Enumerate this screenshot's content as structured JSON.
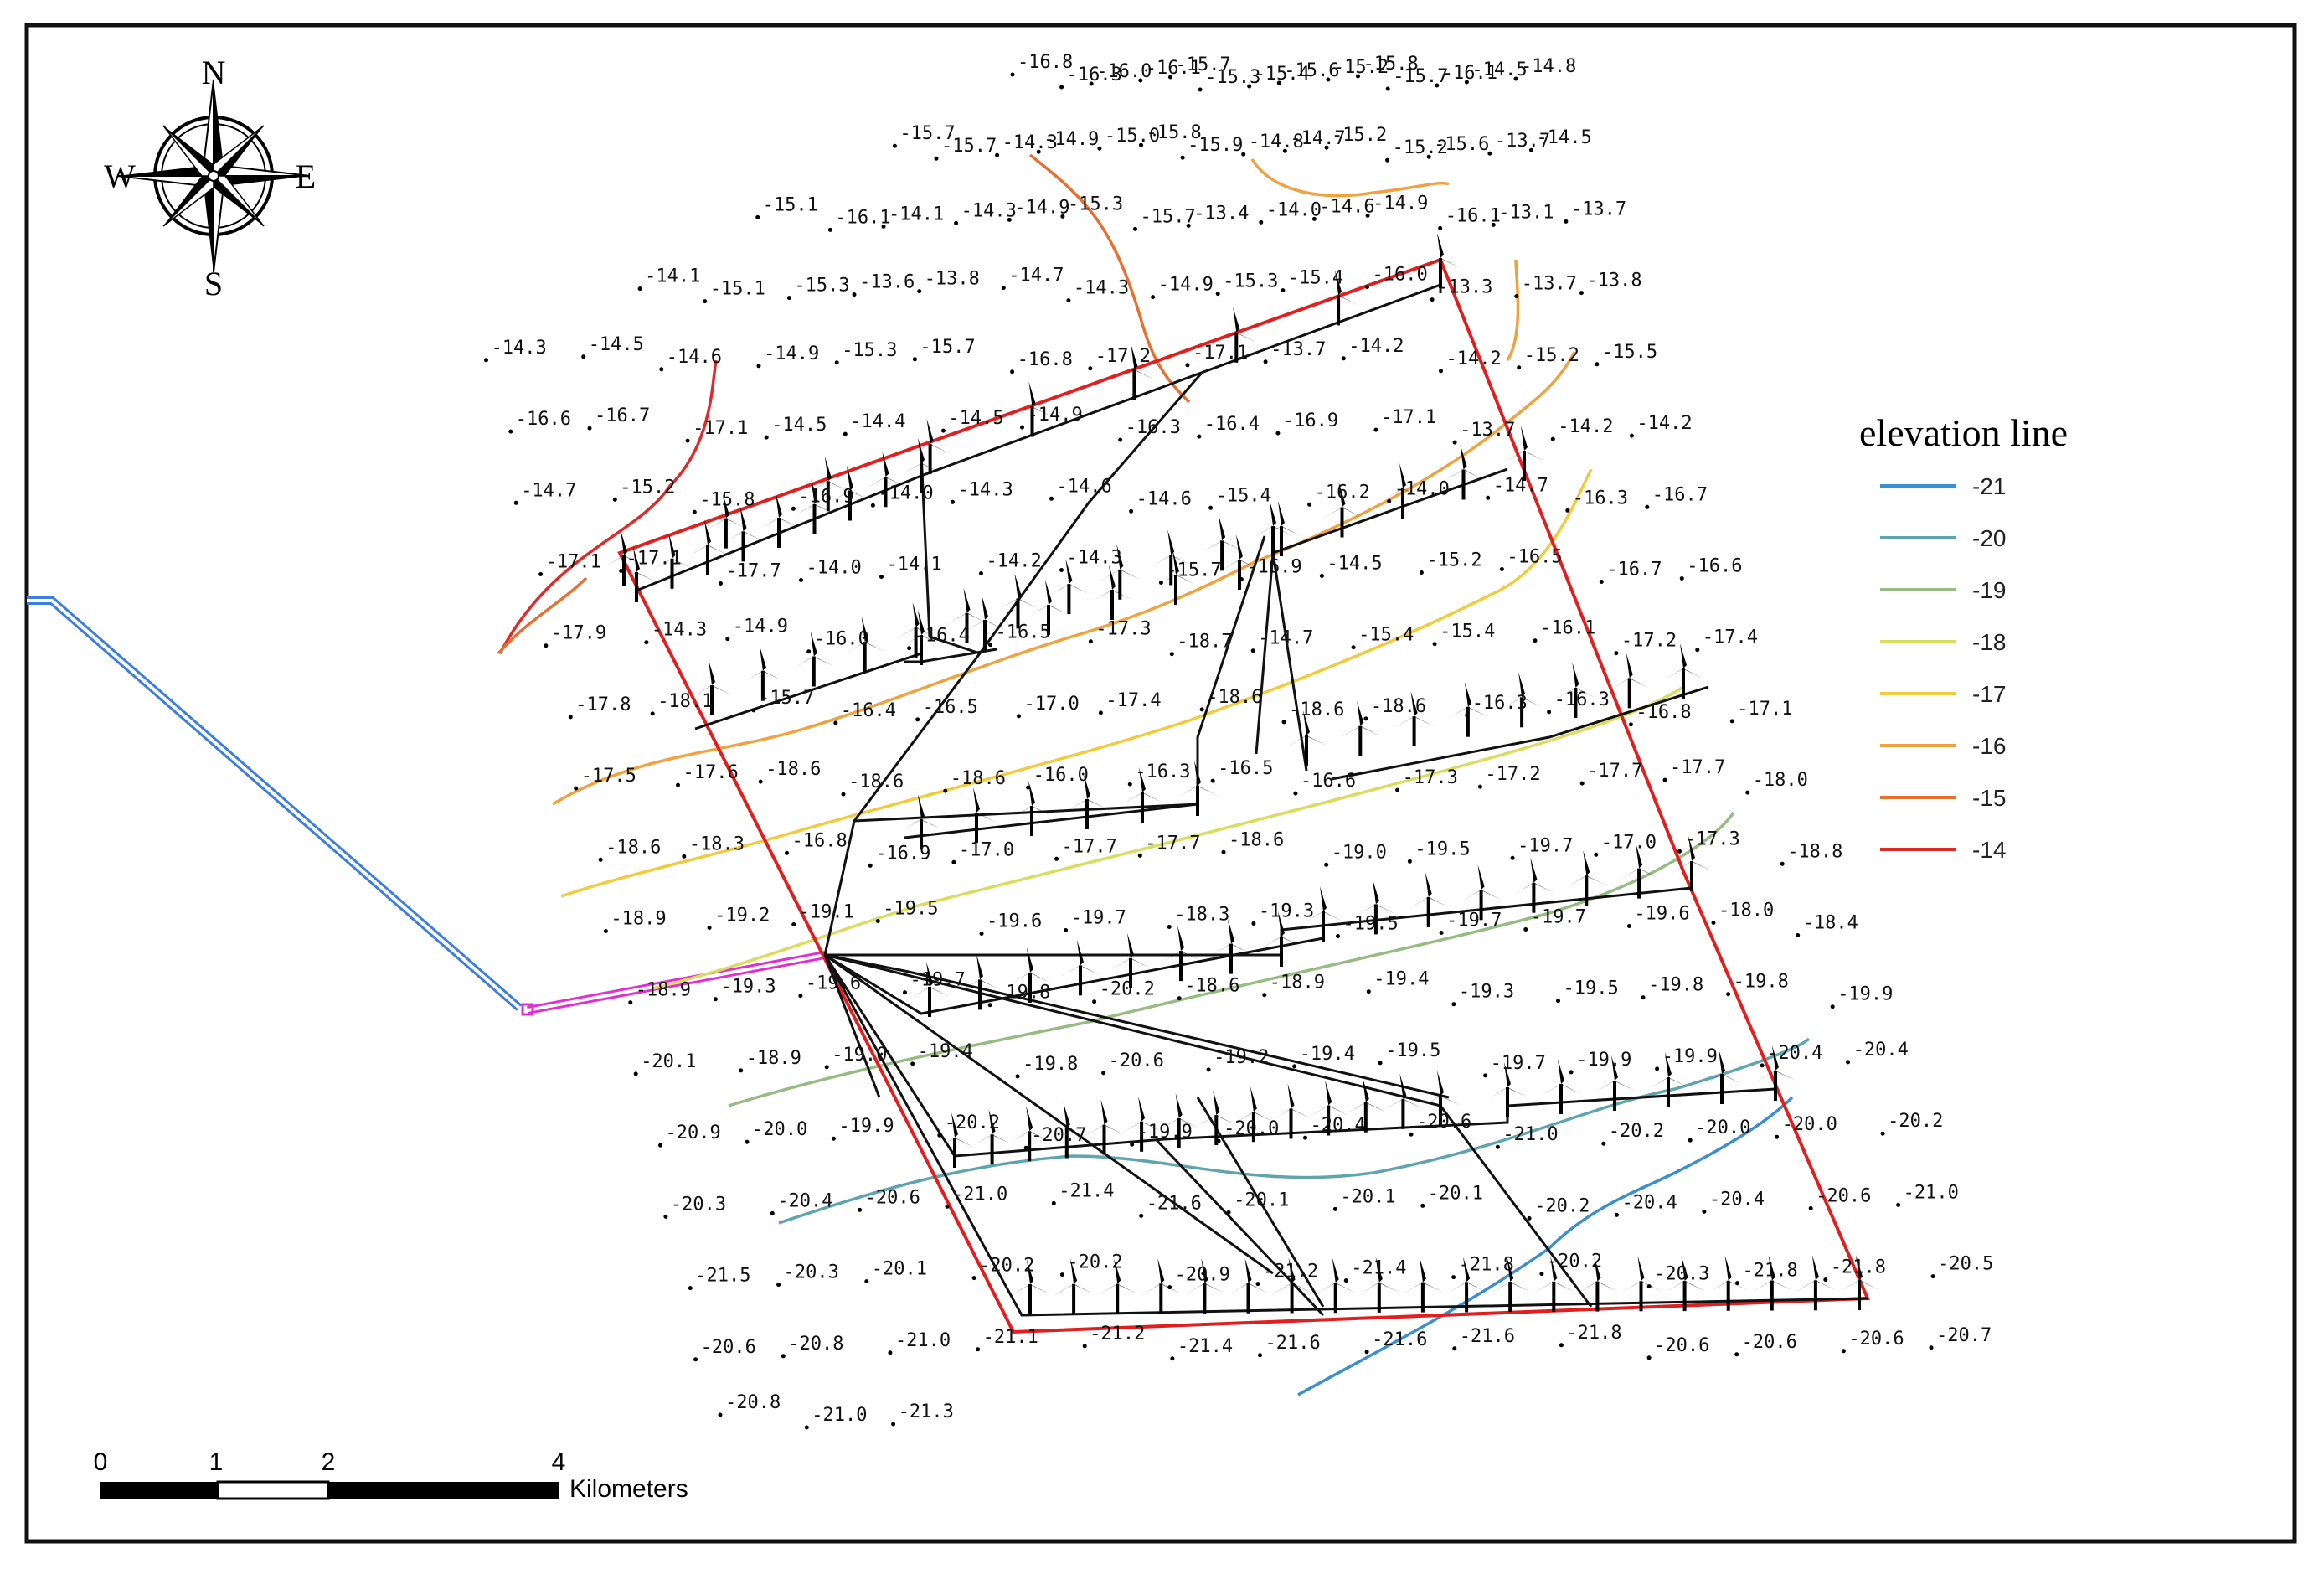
{
  "compass": {
    "north": "N",
    "south": "S",
    "east": "E",
    "west": "W"
  },
  "legend": {
    "title": "elevation line",
    "items": [
      {
        "label": "-21",
        "color": "#3a8fd0"
      },
      {
        "label": "-20",
        "color": "#5fa5ad"
      },
      {
        "label": "-19",
        "color": "#98bb84"
      },
      {
        "label": "-18",
        "color": "#d9dd5e"
      },
      {
        "label": "-17",
        "color": "#f2cb3c"
      },
      {
        "label": "-16",
        "color": "#f0a23e"
      },
      {
        "label": "-15",
        "color": "#e8702e"
      },
      {
        "label": "-14",
        "color": "#e02a2a"
      }
    ]
  },
  "scale_bar": {
    "labels": [
      "0",
      "1",
      "2",
      "4"
    ],
    "unit": "Kilometers"
  },
  "soundings": [
    "-16.8",
    "-16.3",
    "-16.0",
    "-16.1",
    "-15.7",
    "-15.3",
    "-15.4",
    "-15.6",
    "-15.2",
    "-15.8",
    "-15.7",
    "-16.1",
    "-14.5",
    "-14.8",
    "-15.7",
    "-15.7",
    "-14.3",
    "-14.9",
    "-15.0",
    "-15.8",
    "-15.9",
    "-14.8",
    "-14.7",
    "-15.2",
    "-15.2",
    "-15.6",
    "-13.7",
    "-14.5",
    "-15.1",
    "-16.1",
    "-14.1",
    "-14.3",
    "-14.9",
    "-15.3",
    "-15.7",
    "-13.4",
    "-14.0",
    "-14.6",
    "-14.9",
    "-16.1",
    "-13.1",
    "-13.7",
    "-14.1",
    "-15.1",
    "-15.3",
    "-13.6",
    "-13.8",
    "-14.7",
    "-14.3",
    "-14.9",
    "-15.3",
    "-15.4",
    "-16.0",
    "-13.3",
    "-13.7",
    "-13.8",
    "-14.3",
    "-14.5",
    "-14.6",
    "-14.9",
    "-15.3",
    "-15.7",
    "-16.8",
    "-17.2",
    "-17.1",
    "-13.7",
    "-14.2",
    "-14.2",
    "-15.2",
    "-15.5",
    "-16.6",
    "-16.7",
    "-17.1",
    "-14.5",
    "-14.4",
    "-14.5",
    "-14.9",
    "-16.3",
    "-16.4",
    "-16.9",
    "-17.1",
    "-13.7",
    "-14.2",
    "-14.2",
    "-14.7",
    "-15.2",
    "-15.8",
    "-16.9",
    "-14.0",
    "-14.3",
    "-14.6",
    "-14.6",
    "-15.4",
    "-16.2",
    "-14.0",
    "-14.7",
    "-16.3",
    "-16.7",
    "-17.1",
    "-17.1",
    "-17.7",
    "-14.0",
    "-14.1",
    "-14.2",
    "-14.3",
    "-15.7",
    "-16.9",
    "-14.5",
    "-15.2",
    "-16.5",
    "-16.7",
    "-16.6",
    "-17.9",
    "-14.3",
    "-14.9",
    "-16.0",
    "-16.4",
    "-16.5",
    "-17.3",
    "-18.7",
    "-14.7",
    "-15.4",
    "-15.4",
    "-16.1",
    "-17.2",
    "-17.4",
    "-17.8",
    "-18.1",
    "-15.7",
    "-16.4",
    "-16.5",
    "-17.0",
    "-17.4",
    "-18.6",
    "-18.6",
    "-18.6",
    "-16.3",
    "-16.3",
    "-16.8",
    "-17.1",
    "-17.5",
    "-17.6",
    "-18.6",
    "-18.6",
    "-18.6",
    "-16.0",
    "-16.3",
    "-16.5",
    "-16.6",
    "-17.3",
    "-17.2",
    "-17.7",
    "-17.7",
    "-18.0",
    "-18.6",
    "-18.3",
    "-16.8",
    "-16.9",
    "-17.0",
    "-17.7",
    "-17.7",
    "-18.6",
    "-19.0",
    "-19.5",
    "-19.7",
    "-17.0",
    "-17.3",
    "-18.8",
    "-18.9",
    "-19.2",
    "-19.1",
    "-19.5",
    "-19.6",
    "-19.7",
    "-18.3",
    "-19.3",
    "-19.5",
    "-19.7",
    "-19.7",
    "-19.6",
    "-18.0",
    "-18.4",
    "-18.9",
    "-19.3",
    "-19.6",
    "-19.7",
    "-19.8",
    "-20.2",
    "-18.6",
    "-18.9",
    "-19.4",
    "-19.3",
    "-19.5",
    "-19.8",
    "-19.8",
    "-19.9",
    "-20.1",
    "-18.9",
    "-19.0",
    "-19.4",
    "-19.8",
    "-20.6",
    "-19.2",
    "-19.4",
    "-19.5",
    "-19.7",
    "-19.9",
    "-19.9",
    "-20.4",
    "-20.4",
    "-20.9",
    "-20.0",
    "-19.9",
    "-20.2",
    "-20.7",
    "-19.9",
    "-20.0",
    "-20.4",
    "-20.6",
    "-21.0",
    "-20.2",
    "-20.0",
    "-20.0",
    "-20.2",
    "-20.3",
    "-20.4",
    "-20.6",
    "-21.0",
    "-21.4",
    "-21.6",
    "-20.1",
    "-20.1",
    "-20.1",
    "-20.2",
    "-20.4",
    "-20.4",
    "-20.6",
    "-21.0",
    "-21.5",
    "-20.3",
    "-20.1",
    "-20.2",
    "-20.2",
    "-20.9",
    "-21.2",
    "-21.4",
    "-21.8",
    "-20.2",
    "-20.3",
    "-21.8",
    "-21.8",
    "-20.5",
    "-20.6",
    "-20.8",
    "-21.0",
    "-21.1",
    "-21.2",
    "-21.4",
    "-21.6",
    "-21.6",
    "-21.6",
    "-21.8",
    "-20.6",
    "-20.6",
    "-20.6",
    "-20.7",
    "-20.8",
    "-21.0",
    "-21.3"
  ]
}
